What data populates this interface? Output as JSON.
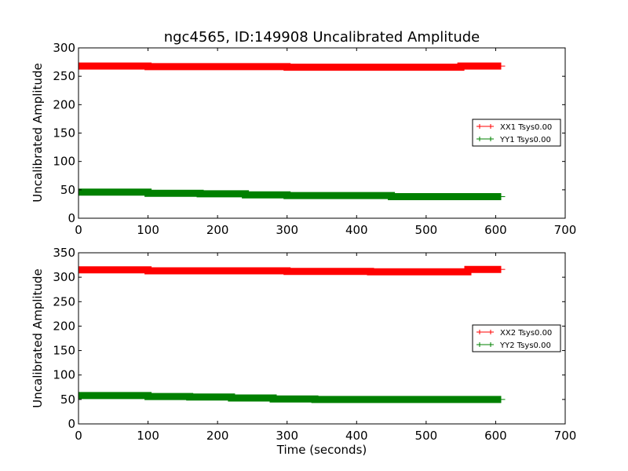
{
  "chart_data": [
    {
      "type": "line",
      "title": "ngc4565, ID:149908 Uncalibrated Amplitude",
      "xlabel": "",
      "ylabel": "Uncalibrated Amplitude",
      "xlim": [
        0,
        700
      ],
      "ylim": [
        0,
        300
      ],
      "xticks": [
        "0",
        "100",
        "200",
        "300",
        "400",
        "500",
        "600",
        "700"
      ],
      "yticks": [
        "0",
        "50",
        "100",
        "150",
        "200",
        "250",
        "300"
      ],
      "legend_position": "center-right",
      "series": [
        {
          "name": "XX1 Tsys0.00",
          "color": "#ff0000",
          "x": [
            0,
            100,
            100,
            300,
            300,
            450,
            450,
            550,
            550,
            608
          ],
          "y": [
            268,
            268,
            267,
            267,
            266,
            266,
            266,
            266,
            268,
            268
          ]
        },
        {
          "name": "YY1 Tsys0.00",
          "color": "#008000",
          "x": [
            0,
            100,
            100,
            175,
            175,
            240,
            240,
            300,
            300,
            450,
            450,
            608
          ],
          "y": [
            46,
            46,
            44,
            44,
            43,
            43,
            41,
            41,
            40,
            40,
            38,
            38
          ]
        }
      ]
    },
    {
      "type": "line",
      "title": "",
      "xlabel": "Time (seconds)",
      "ylabel": "Uncalibrated Amplitude",
      "xlim": [
        0,
        700
      ],
      "ylim": [
        0,
        350
      ],
      "xticks": [
        "0",
        "100",
        "200",
        "300",
        "400",
        "500",
        "600",
        "700"
      ],
      "yticks": [
        "0",
        "50",
        "100",
        "150",
        "200",
        "250",
        "300",
        "350"
      ],
      "legend_position": "center-right",
      "series": [
        {
          "name": "XX2 Tsys0.00",
          "color": "#ff0000",
          "x": [
            0,
            100,
            100,
            300,
            300,
            420,
            420,
            560,
            560,
            608
          ],
          "y": [
            315,
            315,
            313,
            313,
            312,
            312,
            311,
            311,
            316,
            316
          ]
        },
        {
          "name": "YY2 Tsys0.00",
          "color": "#008000",
          "x": [
            0,
            100,
            100,
            160,
            160,
            220,
            220,
            280,
            280,
            340,
            340,
            608
          ],
          "y": [
            58,
            58,
            56,
            56,
            55,
            55,
            53,
            53,
            51,
            51,
            50,
            50
          ]
        }
      ]
    }
  ]
}
